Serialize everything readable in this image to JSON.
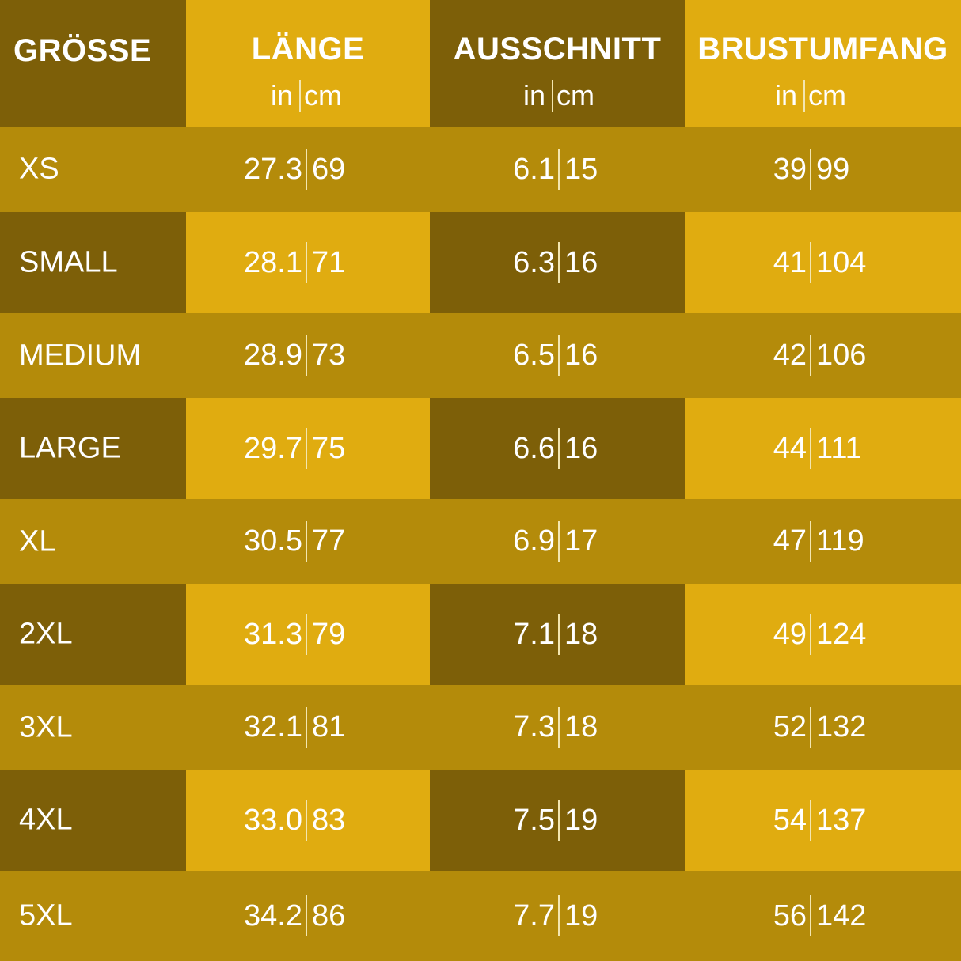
{
  "header": {
    "size": "GRÖSSE",
    "columns": [
      {
        "title": "LÄNGE",
        "unit_in": "in",
        "unit_cm": "cm"
      },
      {
        "title": "AUSSCHNITT",
        "unit_in": "in",
        "unit_cm": "cm"
      },
      {
        "title": "BRUSTUMFANG",
        "unit_in": "in",
        "unit_cm": "cm"
      }
    ]
  },
  "colors": {
    "dark": "#7d5f08",
    "mid": "#b48b0a",
    "bright": "#e0ac10",
    "text": "#ffffff"
  },
  "rows": [
    {
      "size": "XS",
      "values": [
        [
          "27.3",
          "69"
        ],
        [
          "6.1",
          "15"
        ],
        [
          "39",
          "99"
        ]
      ]
    },
    {
      "size": "SMALL",
      "values": [
        [
          "28.1",
          "71"
        ],
        [
          "6.3",
          "16"
        ],
        [
          "41",
          "104"
        ]
      ]
    },
    {
      "size": "MEDIUM",
      "values": [
        [
          "28.9",
          "73"
        ],
        [
          "6.5",
          "16"
        ],
        [
          "42",
          "106"
        ]
      ]
    },
    {
      "size": "LARGE",
      "values": [
        [
          "29.7",
          "75"
        ],
        [
          "6.6",
          "16"
        ],
        [
          "44",
          "111"
        ]
      ]
    },
    {
      "size": "XL",
      "values": [
        [
          "30.5",
          "77"
        ],
        [
          "6.9",
          "17"
        ],
        [
          "47",
          "119"
        ]
      ]
    },
    {
      "size": "2XL",
      "values": [
        [
          "31.3",
          "79"
        ],
        [
          "7.1",
          "18"
        ],
        [
          "49",
          "124"
        ]
      ]
    },
    {
      "size": "3XL",
      "values": [
        [
          "32.1",
          "81"
        ],
        [
          "7.3",
          "18"
        ],
        [
          "52",
          "132"
        ]
      ]
    },
    {
      "size": "4XL",
      "values": [
        [
          "33.0",
          "83"
        ],
        [
          "7.5",
          "19"
        ],
        [
          "54",
          "137"
        ]
      ]
    },
    {
      "size": "5XL",
      "values": [
        [
          "34.2",
          "86"
        ],
        [
          "7.7",
          "19"
        ],
        [
          "56",
          "142"
        ]
      ]
    }
  ]
}
